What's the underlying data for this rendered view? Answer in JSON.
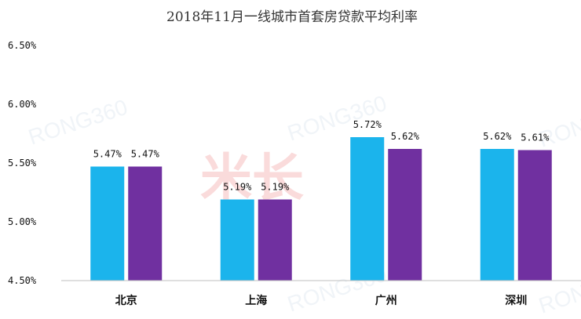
{
  "chart_data": {
    "type": "bar",
    "title": "2018年11月一线城市首套房贷款平均利率",
    "categories": [
      "北京",
      "上海",
      "广州",
      "深圳"
    ],
    "series": [
      {
        "values": [
          5.47,
          5.19,
          5.72,
          5.62
        ],
        "color": "#1bb4ec"
      },
      {
        "values": [
          5.47,
          5.19,
          5.62,
          5.61
        ],
        "color": "#7030a0"
      }
    ],
    "ylim": [
      4.5,
      6.5
    ],
    "yticks": [
      "4.50%",
      "5.00%",
      "5.50%",
      "6.00%",
      "6.50%"
    ],
    "ytick_values": [
      4.5,
      5.0,
      5.5,
      6.0,
      6.5
    ],
    "data_labels": [
      [
        "5.47%",
        "5.19%",
        "5.72%",
        "5.62%"
      ],
      [
        "5.47%",
        "5.19%",
        "5.62%",
        "5.61%"
      ]
    ],
    "grid": false,
    "legend": "none"
  },
  "watermarks": [
    "RONG360",
    "米长"
  ]
}
